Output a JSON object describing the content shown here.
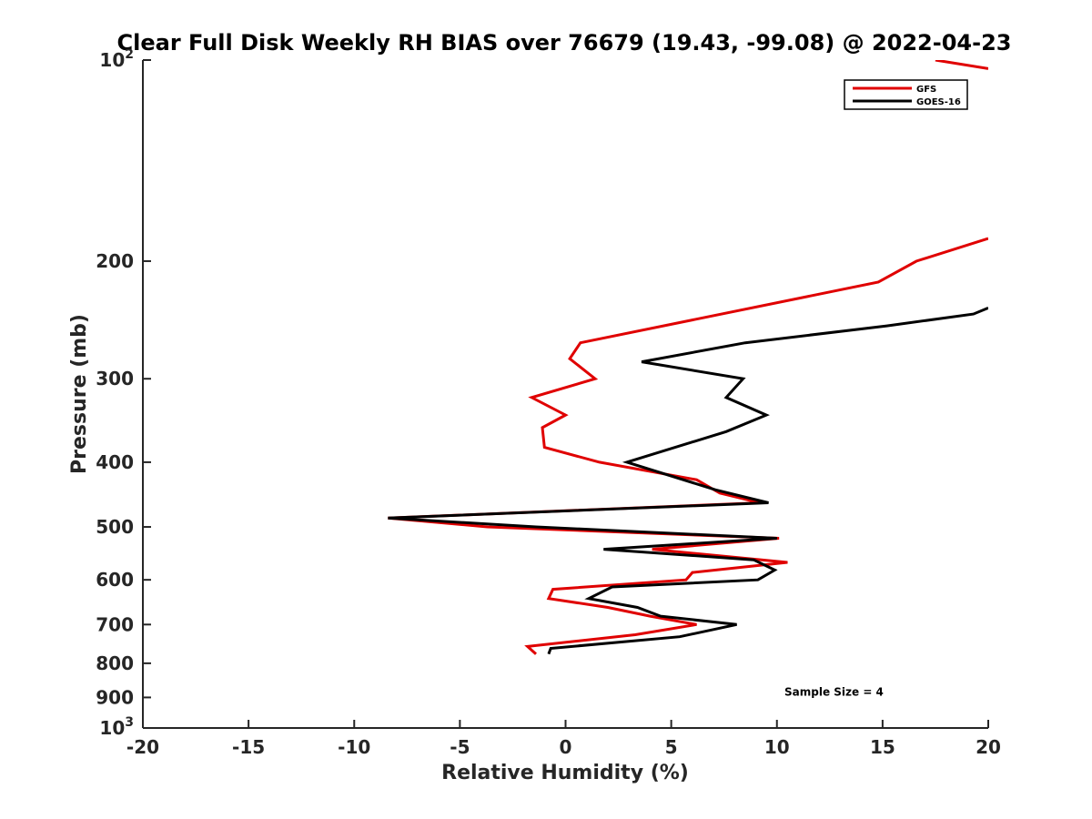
{
  "chart_data": {
    "type": "line",
    "title": "Clear Full Disk Weekly RH BIAS over 76679 (19.43, -99.08) @ 2022-04-23",
    "xlabel": "Relative Humidity (%)",
    "ylabel": "Pressure (mb)",
    "xlim": [
      -20,
      20
    ],
    "ylim": [
      100,
      1000
    ],
    "yscale": "log",
    "y_reversed": true,
    "grid": false,
    "legend_position": "top-right",
    "x_ticks": [
      "-20",
      "-15",
      "-10",
      "-5",
      "0",
      "5",
      "10",
      "15",
      "20"
    ],
    "x_tick_values": [
      -20,
      -15,
      -10,
      -5,
      0,
      5,
      10,
      15,
      20
    ],
    "y_ticks": [
      {
        "value": 100,
        "base": "10",
        "exp": "2"
      },
      {
        "value": 200,
        "label": "200"
      },
      {
        "value": 300,
        "label": "300"
      },
      {
        "value": 400,
        "label": "400"
      },
      {
        "value": 500,
        "label": "500"
      },
      {
        "value": 600,
        "label": "600"
      },
      {
        "value": 700,
        "label": "700"
      },
      {
        "value": 800,
        "label": "800"
      },
      {
        "value": 900,
        "label": "900"
      },
      {
        "value": 1000,
        "base": "10",
        "exp": "3"
      }
    ],
    "series": [
      {
        "name": "GFS",
        "color": "#e00000",
        "segments": [
          [
            {
              "x": 17.5,
              "y": 100
            },
            {
              "x": 20,
              "y": 103
            }
          ],
          [
            {
              "x": 20,
              "y": 185
            },
            {
              "x": 16.6,
              "y": 200
            },
            {
              "x": 14.8,
              "y": 215
            },
            {
              "x": 0.7,
              "y": 265
            },
            {
              "x": 0.2,
              "y": 280
            },
            {
              "x": 1.4,
              "y": 300
            },
            {
              "x": -1.6,
              "y": 320
            },
            {
              "x": 0,
              "y": 340
            },
            {
              "x": -1.1,
              "y": 355
            },
            {
              "x": -1.0,
              "y": 380
            },
            {
              "x": 1.6,
              "y": 400
            },
            {
              "x": 6.2,
              "y": 425
            },
            {
              "x": 7.3,
              "y": 445
            },
            {
              "x": 9.2,
              "y": 460
            },
            {
              "x": -8.4,
              "y": 485
            },
            {
              "x": -3.7,
              "y": 500
            },
            {
              "x": 10.1,
              "y": 520
            },
            {
              "x": 4.1,
              "y": 540
            },
            {
              "x": 10.5,
              "y": 565
            },
            {
              "x": 6.0,
              "y": 585
            },
            {
              "x": 5.7,
              "y": 600
            },
            {
              "x": -0.6,
              "y": 620
            },
            {
              "x": -0.8,
              "y": 640
            },
            {
              "x": 2.0,
              "y": 660
            },
            {
              "x": 4.0,
              "y": 680
            },
            {
              "x": 6.2,
              "y": 700
            },
            {
              "x": 3.3,
              "y": 725
            },
            {
              "x": -1.8,
              "y": 755
            },
            {
              "x": -1.4,
              "y": 775
            }
          ]
        ]
      },
      {
        "name": "GOES-16",
        "color": "#000000",
        "segments": [
          [
            {
              "x": 20,
              "y": 235
            },
            {
              "x": 19.3,
              "y": 240
            },
            {
              "x": 15.2,
              "y": 250
            },
            {
              "x": 8.5,
              "y": 265
            },
            {
              "x": 3.6,
              "y": 283
            },
            {
              "x": 8.4,
              "y": 300
            },
            {
              "x": 7.6,
              "y": 320
            },
            {
              "x": 9.5,
              "y": 340
            },
            {
              "x": 7.6,
              "y": 360
            },
            {
              "x": 2.9,
              "y": 400
            },
            {
              "x": 7.1,
              "y": 440
            },
            {
              "x": 9.6,
              "y": 460
            },
            {
              "x": -8.4,
              "y": 485
            },
            {
              "x": -1.4,
              "y": 500
            },
            {
              "x": 10.0,
              "y": 520
            },
            {
              "x": 1.8,
              "y": 540
            },
            {
              "x": 8.9,
              "y": 560
            },
            {
              "x": 9.9,
              "y": 580
            },
            {
              "x": 9.1,
              "y": 600
            },
            {
              "x": 2.2,
              "y": 615
            },
            {
              "x": 1.1,
              "y": 640
            },
            {
              "x": 3.4,
              "y": 660
            },
            {
              "x": 4.5,
              "y": 680
            },
            {
              "x": 8.1,
              "y": 700
            },
            {
              "x": 5.4,
              "y": 730
            },
            {
              "x": -0.7,
              "y": 760
            },
            {
              "x": -0.8,
              "y": 775
            }
          ]
        ]
      }
    ],
    "annotations": [
      {
        "text": "Sample Size = 4",
        "x": 12.7,
        "y": 900
      }
    ]
  }
}
